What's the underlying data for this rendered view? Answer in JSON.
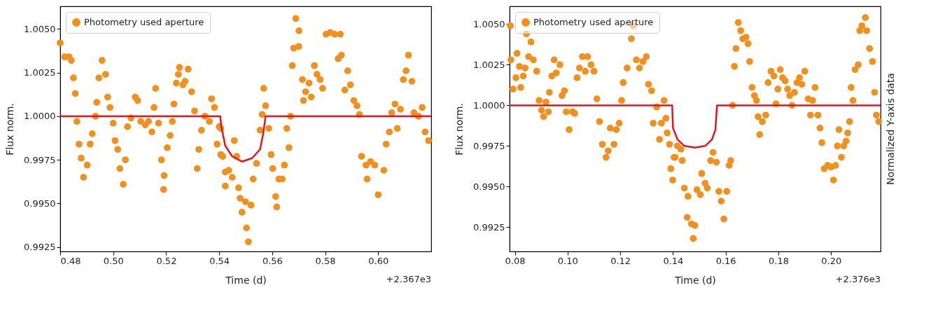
{
  "chart_data": [
    {
      "type": "scatter",
      "xlabel": "Time (d)",
      "ylabel": "Flux norm.",
      "annotations": [
        "+2.367e3"
      ],
      "legend": "top left",
      "grid": false,
      "xlim": [
        0.48,
        0.62
      ],
      "ylim": [
        0.99225,
        1.0063
      ],
      "xticks": [
        0.48,
        {
          "value": 0.5,
          "label": "0.50"
        },
        0.52,
        0.54,
        0.56,
        0.58,
        {
          "value": 0.6,
          "label": "0.60"
        }
      ],
      "yticks": [
        {
          "value": 0.9925,
          "label": "0.9925"
        },
        {
          "value": 0.995,
          "label": "0.9950"
        },
        {
          "value": 0.9975,
          "label": "0.9975"
        },
        {
          "value": 1,
          "label": "1.0000"
        },
        {
          "value": 1.0025,
          "label": "1.0025"
        },
        {
          "value": 1.005,
          "label": "1.0050"
        }
      ],
      "series": [
        {
          "name": "Photometry used aperture",
          "color": "#f0901e",
          "marker": "circle",
          "x": [
            0.48,
            0.4817,
            0.4833,
            0.4842,
            0.485,
            0.4857,
            0.4863,
            0.4871,
            0.4879,
            0.4888,
            0.4902,
            0.4913,
            0.4921,
            0.4933,
            0.4938,
            0.4946,
            0.4958,
            0.4971,
            0.4979,
            0.4988,
            0.5,
            0.5007,
            0.5017,
            0.5025,
            0.5038,
            0.5046,
            0.5054,
            0.5067,
            0.5083,
            0.5092,
            0.5104,
            0.5121,
            0.5133,
            0.5146,
            0.5154,
            0.516,
            0.5171,
            0.5182,
            0.5192,
            0.519,
            0.5204,
            0.5215,
            0.5223,
            0.5229,
            0.5238,
            0.5246,
            0.525,
            0.5263,
            0.5271,
            0.5283,
            0.5296,
            0.5307,
            0.5317,
            0.5323,
            0.5333,
            0.5346,
            0.5363,
            0.5371,
            0.5382,
            0.5392,
            0.54,
            0.5413,
            0.5406,
            0.5406,
            0.5423,
            0.5423,
            0.5436,
            0.5449,
            0.5457,
            0.5466,
            0.5473,
            0.5479,
            0.5486,
            0.5499,
            0.5503,
            0.551,
            0.552,
            0.5528,
            0.5541,
            0.5554,
            0.5562,
            0.5568,
            0.5575,
            0.5587,
            0.5596,
            0.5602,
            0.5613,
            0.5617,
            0.5625,
            0.5638,
            0.5646,
            0.5655,
            0.5663,
            0.5669,
            0.5676,
            0.5681,
            0.5689,
            0.5701,
            0.57,
            0.5714,
            0.5718,
            0.5726,
            0.5739,
            0.5747,
            0.5759,
            0.5769,
            0.5781,
            0.579,
            0.5803,
            0.5819,
            0.5836,
            0.5857,
            0.5849,
            0.5861,
            0.5874,
            0.5885,
            0.5895,
            0.5908,
            0.592,
            0.5929,
            0.5937,
            0.5954,
            0.5958,
            0.5971,
            0.5987,
            0.6,
            0.6021,
            0.603,
            0.6042,
            0.6051,
            0.6063,
            0.6072,
            0.6084,
            0.6095,
            0.6105,
            0.6114,
            0.6127,
            0.6135,
            0.6152,
            0.6166,
            0.6177,
            0.619
          ],
          "values": [
            1.0042,
            1.0034,
            1.0034,
            1.0032,
            1.0022,
            1.0013,
            0.9997,
            0.9984,
            0.9976,
            0.9965,
            0.9972,
            0.9984,
            0.999,
            1.0,
            1.0008,
            1.0022,
            1.0032,
            1.0024,
            1.0011,
            1.0005,
            0.9996,
            0.9986,
            0.9981,
            0.997,
            0.9961,
            0.9975,
            0.9994,
            0.9999,
            1.0011,
            1.0009,
            0.9997,
            0.9995,
            0.9997,
            0.9991,
            1.0005,
            1.0016,
            0.9996,
            0.9975,
            0.9966,
            0.9958,
            0.9982,
            0.9989,
            0.9997,
            1.0007,
            1.0019,
            1.0024,
            1.0028,
            1.0018,
            1.002,
            1.0027,
            1.0014,
            1.0003,
            0.997,
            0.9981,
            0.9992,
            1.0,
            0.9997,
            1.001,
            1.0005,
            0.9984,
            0.9994,
            0.9977,
            0.9993,
            0.9978,
            0.9968,
            0.996,
            0.9969,
            0.9965,
            0.9986,
            0.9977,
            0.9959,
            0.9953,
            0.9945,
            0.9951,
            0.9936,
            0.9928,
            0.9949,
            0.9964,
            0.9973,
            0.9992,
            1.0001,
            1.0016,
            1.0006,
            0.9993,
            0.9978,
            0.997,
            0.9954,
            0.9948,
            0.9964,
            0.9964,
            0.9972,
            0.9993,
            0.9982,
            1.0,
            1.0029,
            1.0039,
            1.0056,
            1.0049,
            1.004,
            1.0021,
            1.0009,
            1.0014,
            1.0019,
            1.0011,
            1.0029,
            1.0024,
            1.0021,
            1.0016,
            1.0047,
            1.0048,
            1.0047,
            1.0047,
            1.0033,
            1.0035,
            1.0015,
            1.0026,
            1.0018,
            1.0009,
            1.0006,
            1.0001,
            0.9977,
            0.9972,
            0.9964,
            0.9974,
            0.9972,
            0.9955,
            0.9969,
            0.9984,
            0.9991,
            1.0002,
            1.0007,
            0.9993,
            1.0004,
            1.0021,
            1.0026,
            1.0035,
            1.002,
            1.0002,
            1.0,
            1.0005,
            0.9991,
            0.9986
          ]
        },
        {
          "type": "line",
          "color": "#e8131f",
          "x": [
            0.48,
            0.5404,
            0.5408,
            0.5423,
            0.5449,
            0.5486,
            0.5524,
            0.5554,
            0.5566,
            0.5575,
            0.62
          ],
          "values": [
            1.0,
            1.0,
            0.9994,
            0.9983,
            0.9977,
            0.9974,
            0.9976,
            0.9981,
            0.999,
            1.0,
            1.0
          ]
        }
      ]
    },
    {
      "type": "scatter",
      "xlabel": "Time (d)",
      "ylabel": "Flux norm.",
      "y2label": "Normalized Y-axis data",
      "annotations": [
        "+2.376e3"
      ],
      "legend": "top left",
      "grid": false,
      "xlim": [
        0.078,
        0.2188
      ],
      "ylim": [
        0.991,
        1.0061
      ],
      "xticks": [
        0.08,
        {
          "value": 0.1,
          "label": "0.10"
        },
        0.12,
        0.14,
        0.16,
        0.18,
        {
          "value": 0.2,
          "label": "0.20"
        }
      ],
      "yticks": [
        {
          "value": 0.9925,
          "label": "0.9925"
        },
        {
          "value": 0.995,
          "label": "0.9950"
        },
        {
          "value": 0.9975,
          "label": "0.9975"
        },
        {
          "value": 1,
          "label": "1.0000"
        },
        {
          "value": 1.0025,
          "label": "1.0025"
        },
        {
          "value": 1.005,
          "label": "1.0050"
        }
      ],
      "series": [
        {
          "name": "Photometry used aperture",
          "color": "#f0901e",
          "marker": "circle",
          "x": [
            0.0783,
            0.0785,
            0.0793,
            0.0804,
            0.0808,
            0.0817,
            0.0822,
            0.0832,
            0.0839,
            0.0844,
            0.0852,
            0.0861,
            0.087,
            0.0883,
            0.0892,
            0.0901,
            0.0909,
            0.0918,
            0.0927,
            0.0931,
            0.094,
            0.0949,
            0.0957,
            0.0971,
            0.0979,
            0.0988,
            0.0995,
            0.1006,
            0.1019,
            0.1027,
            0.1036,
            0.1045,
            0.1056,
            0.1067,
            0.1076,
            0.1089,
            0.11,
            0.1111,
            0.1121,
            0.1132,
            0.1146,
            0.1154,
            0.1162,
            0.1176,
            0.1185,
            0.1196,
            0.1205,
            0.1211,
            0.1226,
            0.1242,
            0.1249,
            0.1261,
            0.1273,
            0.1286,
            0.1299,
            0.1307,
            0.1319,
            0.1325,
            0.1338,
            0.1349,
            0.1356,
            0.1366,
            0.1373,
            0.1378,
            0.1387,
            0.1392,
            0.1399,
            0.1408,
            0.1404,
            0.1417,
            0.143,
            0.1435,
            0.1443,
            0.1457,
            0.1454,
            0.147,
            0.1483,
            0.1477,
            0.1491,
            0.1504,
            0.1509,
            0.1522,
            0.153,
            0.1543,
            0.1552,
            0.1565,
            0.1574,
            0.1583,
            0.1593,
            0.1604,
            0.1613,
            0.1619,
            0.1626,
            0.1633,
            0.1639,
            0.1648,
            0.1657,
            0.1665,
            0.1677,
            0.1685,
            0.1691,
            0.17,
            0.1709,
            0.1717,
            0.1723,
            0.1729,
            0.1739,
            0.1752,
            0.1761,
            0.1772,
            0.1783,
            0.1791,
            0.1798,
            0.1807,
            0.1816,
            0.1826,
            0.1835,
            0.1843,
            0.1852,
            0.1861,
            0.1871,
            0.188,
            0.1889,
            0.19,
            0.1913,
            0.1922,
            0.193,
            0.1939,
            0.195,
            0.1958,
            0.1965,
            0.1974,
            0.1987,
            0.2,
            0.2009,
            0.2017,
            0.2024,
            0.203,
            0.2039,
            0.2048,
            0.2057,
            0.2063,
            0.207,
            0.2076,
            0.2083,
            0.2091,
            0.2103,
            0.2109,
            0.2117,
            0.213,
            0.2135,
            0.2146,
            0.2157,
            0.2165,
            0.2172,
            0.2181
          ],
          "values": [
            1.0049,
            1.0028,
            1.001,
            1.0017,
            1.0032,
            1.0024,
            1.0011,
            1.0018,
            1.0023,
            1.0044,
            1.003,
            1.0039,
            1.0028,
            1.0021,
            1.0003,
            0.9997,
            0.9993,
            1.0002,
            0.9996,
            1.0008,
            1.0018,
            1.0028,
            1.002,
            1.0025,
            1.0006,
            1.0009,
            0.9996,
            0.9985,
            0.9996,
            0.9995,
            1.0017,
            1.0023,
            1.003,
            1.0021,
            1.003,
            1.0025,
            1.0021,
            1.0004,
            0.999,
            0.9976,
            0.9968,
            0.9972,
            0.9986,
            0.9976,
            0.9985,
            0.9989,
            1.0003,
            1.0014,
            1.0023,
            1.0041,
            1.0049,
            1.0028,
            1.0023,
            1.0027,
            1.003,
            1.0013,
            1.0009,
            0.9989,
            0.9999,
            0.9979,
            0.9989,
            1.0003,
            0.9992,
            0.9983,
            0.9976,
            0.9961,
            0.9954,
            0.9968,
            0.9968,
            0.9975,
            0.9973,
            0.9966,
            0.9949,
            0.9944,
            0.9931,
            0.9927,
            0.9926,
            0.9918,
            0.9948,
            0.9945,
            0.9958,
            0.9952,
            0.9949,
            0.9966,
            0.9971,
            0.9965,
            0.9947,
            0.9941,
            0.993,
            0.9947,
            0.9963,
            0.9966,
            1.0,
            1.0024,
            1.0035,
            1.0051,
            1.0046,
            1.0041,
            1.0042,
            1.0038,
            1.0027,
            1.0011,
            1.0006,
            1.0003,
            0.9993,
            0.9982,
            0.999,
            0.9994,
            1.0014,
            1.0021,
            1.0018,
            1.0001,
            1.001,
            1.0022,
            1.0017,
            1.0015,
            1.001,
            1.0006,
            1.0,
            1.0008,
            1.0014,
            1.0017,
            1.0013,
            1.0021,
            1.0004,
            0.9994,
            1.0003,
            1.0011,
            0.9994,
            0.9986,
            0.9977,
            0.9961,
            0.9963,
            0.9962,
            0.9954,
            0.9963,
            0.9975,
            0.9985,
            0.9968,
            0.9975,
            0.9978,
            0.9983,
            0.999,
            1.0011,
            1.0003,
            1.0022,
            1.0025,
            1.0046,
            1.0049,
            1.0054,
            1.0046,
            1.0035,
            1.0027,
            1.0008,
            0.9994,
            0.999
          ]
        },
        {
          "type": "line",
          "color": "#e8131f",
          "x": [
            0.078,
            0.1397,
            0.14,
            0.1417,
            0.1443,
            0.1483,
            0.1522,
            0.1548,
            0.1561,
            0.1567,
            0.2188
          ],
          "values": [
            1.0,
            1.0,
            0.9986,
            0.9979,
            0.9975,
            0.9974,
            0.9975,
            0.9979,
            0.9985,
            1.0,
            1.0
          ]
        }
      ]
    }
  ]
}
